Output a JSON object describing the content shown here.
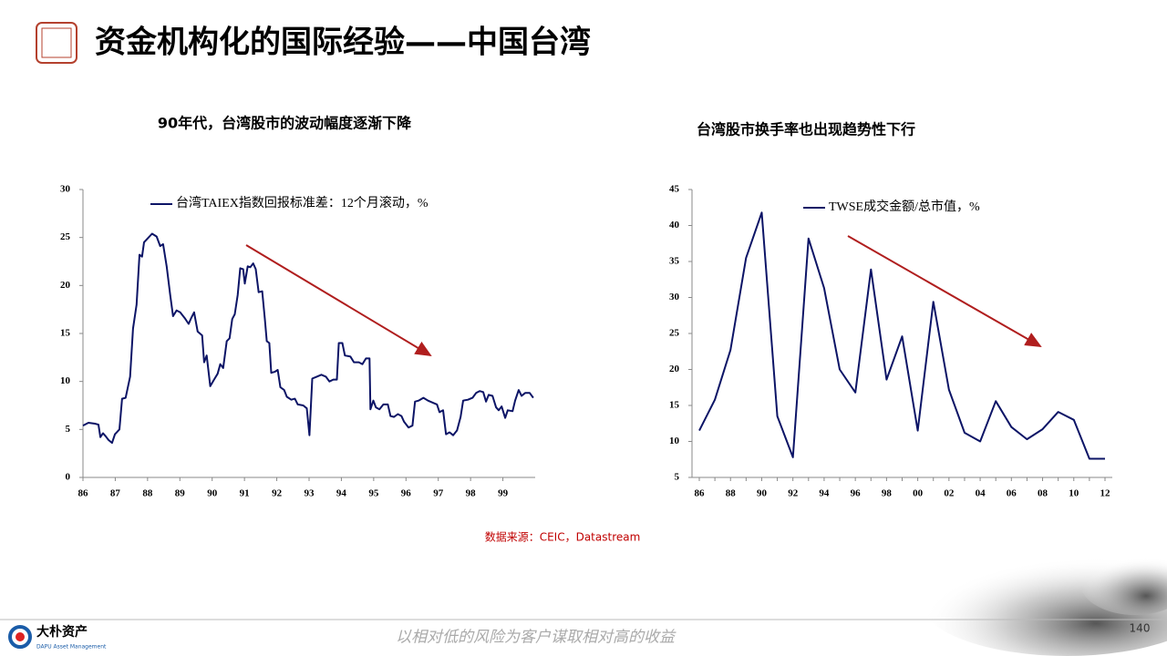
{
  "slide": {
    "title": "资金机构化的国际经验——中国台湾",
    "source": "数据来源：CEIC，Datastream",
    "slogan": "以相对低的风险为客户谋取相对高的收益",
    "page": "140",
    "logo_name": "大朴资产",
    "logo_sub": "DAPU Asset Management"
  },
  "chart_data": [
    {
      "type": "line",
      "title": "90年代，台湾股市的波动幅度逐渐下降",
      "legend": "upper left",
      "x": [
        86.0,
        86.17,
        86.37,
        86.48,
        86.54,
        86.62,
        86.7,
        86.79,
        86.9,
        86.99,
        87.13,
        87.21,
        87.32,
        87.46,
        87.55,
        87.66,
        87.75,
        87.83,
        87.89,
        88.03,
        88.14,
        88.28,
        88.39,
        88.48,
        88.59,
        88.7,
        88.79,
        88.9,
        89.01,
        89.15,
        89.27,
        89.35,
        89.44,
        89.55,
        89.69,
        89.75,
        89.83,
        89.94,
        90.06,
        90.17,
        90.25,
        90.34,
        90.45,
        90.54,
        90.62,
        90.7,
        90.79,
        90.87,
        90.96,
        91.01,
        91.1,
        91.18,
        91.27,
        91.35,
        91.44,
        91.55,
        91.63,
        91.69,
        91.77,
        91.83,
        91.94,
        92.03,
        92.11,
        92.23,
        92.31,
        92.45,
        92.56,
        92.65,
        92.82,
        92.93,
        93.01,
        93.1,
        93.24,
        93.38,
        93.52,
        93.63,
        93.75,
        93.86,
        93.92,
        94.03,
        94.11,
        94.28,
        94.39,
        94.54,
        94.65,
        94.76,
        94.87,
        94.9,
        94.99,
        95.07,
        95.18,
        95.3,
        95.44,
        95.52,
        95.63,
        95.75,
        95.86,
        95.94,
        96.08,
        96.2,
        96.28,
        96.39,
        96.54,
        96.68,
        96.82,
        96.96,
        97.04,
        97.15,
        97.24,
        97.35,
        97.46,
        97.58,
        97.69,
        97.77,
        97.92,
        98.06,
        98.17,
        98.28,
        98.39,
        98.48,
        98.56,
        98.68,
        98.79,
        98.87,
        98.96,
        99.07,
        99.15,
        99.3,
        99.38,
        99.49,
        99.58,
        99.69,
        99.83,
        99.94
      ],
      "series": [
        {
          "name": "台湾TAIEX指数回报标准差：12个月滚动，%",
          "color": "#0c1466",
          "values": [
            5.4,
            5.7,
            5.6,
            5.5,
            4.2,
            4.6,
            4.3,
            3.9,
            3.6,
            4.5,
            5.0,
            8.2,
            8.3,
            10.5,
            15.5,
            18,
            23.2,
            23,
            24.5,
            25.0,
            25.4,
            25.1,
            24.1,
            24.3,
            22,
            19,
            16.8,
            17.4,
            17.2,
            16.6,
            16.0,
            16.6,
            17.2,
            15.2,
            14.8,
            12.0,
            12.7,
            9.5,
            10.2,
            10.8,
            11.8,
            11.4,
            14.2,
            14.5,
            16.5,
            17,
            19,
            21.8,
            21.7,
            20.2,
            22,
            21.9,
            22.3,
            21.7,
            19.3,
            19.4,
            16.5,
            14.2,
            14.0,
            10.9,
            11.0,
            11.2,
            9.4,
            9.1,
            8.4,
            8.1,
            8.2,
            7.6,
            7.5,
            7.2,
            4.4,
            10.3,
            10.5,
            10.7,
            10.5,
            10.0,
            10.2,
            10.2,
            14.0,
            14.0,
            12.7,
            12.6,
            12.0,
            12.0,
            11.8,
            12.4,
            12.4,
            7.1,
            8.0,
            7.3,
            7.1,
            7.6,
            7.6,
            6.4,
            6.3,
            6.6,
            6.4,
            5.8,
            5.2,
            5.4,
            7.9,
            8.0,
            8.3,
            8.0,
            7.8,
            7.6,
            6.8,
            7.0,
            4.5,
            4.7,
            4.4,
            4.9,
            6.3,
            8.0,
            8.1,
            8.3,
            8.8,
            9.0,
            8.9,
            7.9,
            8.6,
            8.5,
            7.3,
            7.0,
            7.4,
            6.2,
            7.0,
            6.9,
            8.0,
            9.1,
            8.5,
            8.8,
            8.8,
            8.3
          ]
        }
      ],
      "xlim": [
        86,
        100
      ],
      "xticks": [
        86,
        87,
        88,
        89,
        90,
        91,
        92,
        93,
        94,
        95,
        96,
        97,
        98,
        99
      ],
      "ylim": [
        0,
        30
      ],
      "yticks": [
        0,
        5,
        10,
        15,
        20,
        25,
        30
      ]
    },
    {
      "type": "line",
      "title": "台湾股市换手率也出现趋势性下行",
      "legend": "upper left",
      "categories": [
        "86",
        null,
        "88",
        null,
        "90",
        null,
        "92",
        null,
        "94",
        null,
        "96",
        null,
        "98",
        null,
        "00",
        null,
        "02",
        null,
        "04",
        null,
        "06",
        null,
        "08",
        null,
        "10",
        null,
        "12"
      ],
      "series": [
        {
          "name": "TWSE成交金额/总市值，%",
          "color": "#0c1466",
          "values": [
            11.5,
            15.8,
            22.7,
            35.5,
            41.8,
            13.5,
            7.8,
            38.2,
            31.3,
            20,
            16.8,
            33.9,
            18.6,
            24.6,
            11.5,
            29.4,
            17.2,
            11.2,
            10.0,
            15.6,
            12,
            10.3,
            11.7,
            14.1,
            13.0,
            7.6,
            7.6
          ]
        }
      ],
      "ylim": [
        5,
        45
      ],
      "yticks": [
        5,
        10,
        15,
        20,
        25,
        30,
        35,
        40,
        45
      ]
    }
  ]
}
